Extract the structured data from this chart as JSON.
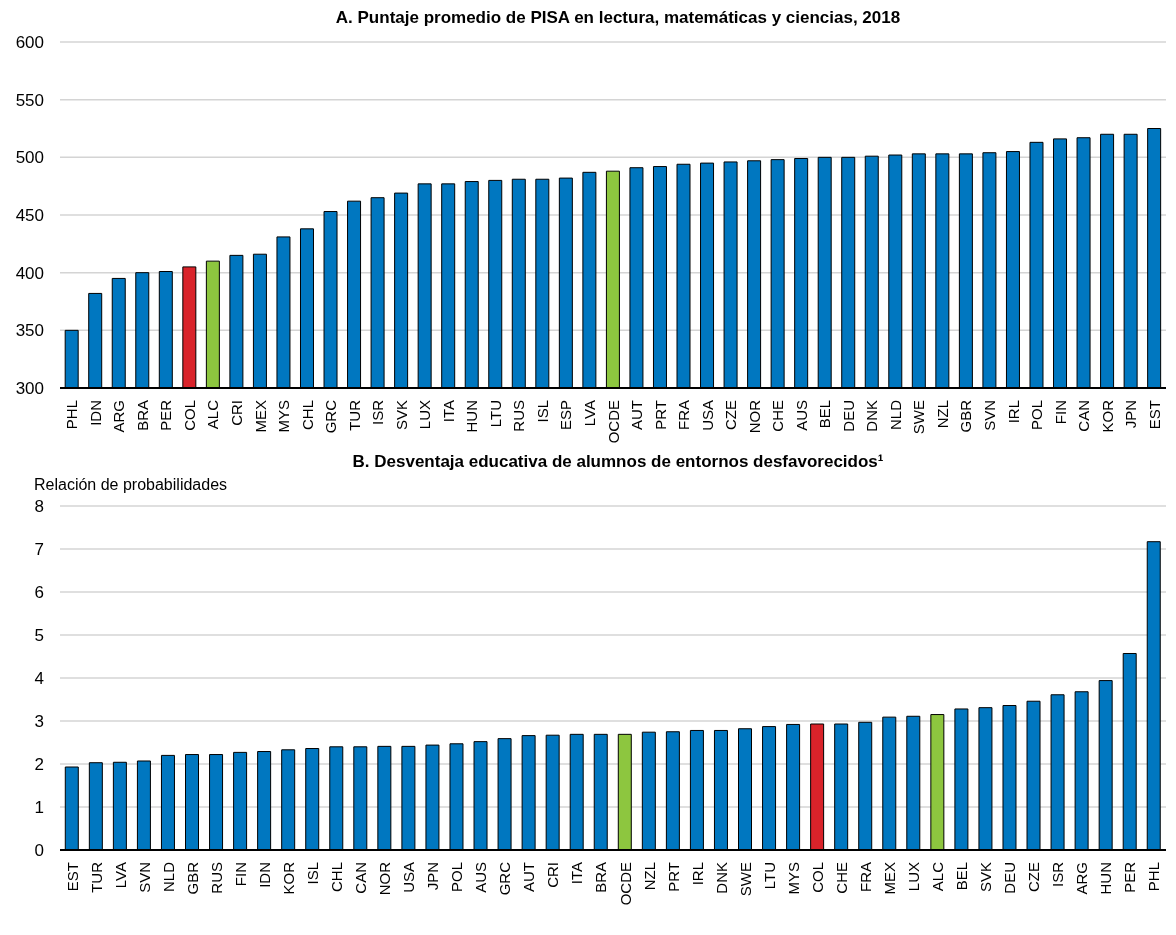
{
  "chart_data": [
    {
      "type": "bar",
      "title": "A. Puntaje promedio de PISA en lectura, matemáticas y ciencias, 2018",
      "categories": [
        "PHL",
        "IDN",
        "ARG",
        "BRA",
        "PER",
        "COL",
        "ALC",
        "CRI",
        "MEX",
        "MYS",
        "CHL",
        "GRC",
        "TUR",
        "ISR",
        "SVK",
        "LUX",
        "ITA",
        "HUN",
        "LTU",
        "RUS",
        "ISL",
        "ESP",
        "LVA",
        "OCDE",
        "AUT",
        "PRT",
        "FRA",
        "USA",
        "CZE",
        "NOR",
        "CHE",
        "AUS",
        "BEL",
        "DEU",
        "DNK",
        "NLD",
        "SWE",
        "NZL",
        "GBR",
        "SVN",
        "IRL",
        "POL",
        "FIN",
        "CAN",
        "KOR",
        "JPN",
        "EST"
      ],
      "values": [
        350,
        382,
        395,
        400,
        401,
        405,
        410,
        415,
        416,
        431,
        438,
        453,
        462,
        465,
        469,
        477,
        477,
        479,
        480,
        481,
        481,
        482,
        487,
        488,
        491,
        492,
        494,
        495,
        496,
        497,
        498,
        499,
        500,
        500,
        501,
        502,
        503,
        503,
        503,
        504,
        505,
        513,
        516,
        517,
        520,
        520,
        525
      ],
      "colors": [
        "#0077c0",
        "#0077c0",
        "#0077c0",
        "#0077c0",
        "#0077c0",
        "#d9232a",
        "#8dc63f",
        "#0077c0",
        "#0077c0",
        "#0077c0",
        "#0077c0",
        "#0077c0",
        "#0077c0",
        "#0077c0",
        "#0077c0",
        "#0077c0",
        "#0077c0",
        "#0077c0",
        "#0077c0",
        "#0077c0",
        "#0077c0",
        "#0077c0",
        "#0077c0",
        "#8dc63f",
        "#0077c0",
        "#0077c0",
        "#0077c0",
        "#0077c0",
        "#0077c0",
        "#0077c0",
        "#0077c0",
        "#0077c0",
        "#0077c0",
        "#0077c0",
        "#0077c0",
        "#0077c0",
        "#0077c0",
        "#0077c0",
        "#0077c0",
        "#0077c0",
        "#0077c0",
        "#0077c0",
        "#0077c0",
        "#0077c0",
        "#0077c0",
        "#0077c0",
        "#0077c0"
      ],
      "ylim": [
        300,
        600
      ],
      "yticks": [
        300,
        350,
        400,
        450,
        500,
        550,
        600
      ],
      "grid": "y",
      "legend": false
    },
    {
      "type": "bar",
      "title": "B. Desventaja educativa de alumnos de entornos desfavorecidos¹",
      "ylabel": "Relación de probabilidades",
      "categories": [
        "EST",
        "TUR",
        "LVA",
        "SVN",
        "NLD",
        "GBR",
        "RUS",
        "FIN",
        "IDN",
        "KOR",
        "ISL",
        "CHL",
        "CAN",
        "NOR",
        "USA",
        "JPN",
        "POL",
        "AUS",
        "GRC",
        "AUT",
        "CRI",
        "ITA",
        "BRA",
        "OCDE",
        "NZL",
        "PRT",
        "IRL",
        "DNK",
        "SWE",
        "LTU",
        "MYS",
        "COL",
        "CHE",
        "FRA",
        "MEX",
        "LUX",
        "ALC",
        "BEL",
        "SVK",
        "DEU",
        "CZE",
        "ISR",
        "ARG",
        "HUN",
        "PER",
        "PHL"
      ],
      "values": [
        1.93,
        2.03,
        2.04,
        2.07,
        2.2,
        2.22,
        2.22,
        2.27,
        2.29,
        2.33,
        2.36,
        2.4,
        2.4,
        2.41,
        2.41,
        2.44,
        2.47,
        2.52,
        2.59,
        2.66,
        2.67,
        2.69,
        2.69,
        2.69,
        2.74,
        2.75,
        2.78,
        2.78,
        2.82,
        2.87,
        2.92,
        2.93,
        2.93,
        2.97,
        3.09,
        3.11,
        3.15,
        3.28,
        3.31,
        3.36,
        3.46,
        3.61,
        3.68,
        3.94,
        4.57,
        7.17
      ],
      "colors": [
        "#0077c0",
        "#0077c0",
        "#0077c0",
        "#0077c0",
        "#0077c0",
        "#0077c0",
        "#0077c0",
        "#0077c0",
        "#0077c0",
        "#0077c0",
        "#0077c0",
        "#0077c0",
        "#0077c0",
        "#0077c0",
        "#0077c0",
        "#0077c0",
        "#0077c0",
        "#0077c0",
        "#0077c0",
        "#0077c0",
        "#0077c0",
        "#0077c0",
        "#0077c0",
        "#8dc63f",
        "#0077c0",
        "#0077c0",
        "#0077c0",
        "#0077c0",
        "#0077c0",
        "#0077c0",
        "#0077c0",
        "#d9232a",
        "#0077c0",
        "#0077c0",
        "#0077c0",
        "#0077c0",
        "#8dc63f",
        "#0077c0",
        "#0077c0",
        "#0077c0",
        "#0077c0",
        "#0077c0",
        "#0077c0",
        "#0077c0",
        "#0077c0",
        "#0077c0"
      ],
      "ylim": [
        0,
        8
      ],
      "yticks": [
        0,
        1,
        2,
        3,
        4,
        5,
        6,
        7,
        8
      ],
      "grid": "y",
      "legend": false
    }
  ]
}
